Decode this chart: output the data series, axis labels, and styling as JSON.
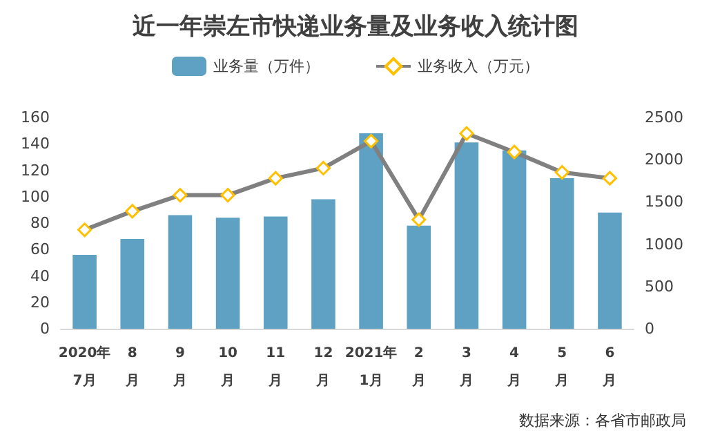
{
  "chart_data": {
    "type": "bar",
    "title": "近一年崇左市快递业务量及业务收入统计图",
    "categories": [
      "2020年\n7月",
      "8\n月",
      "9\n月",
      "10\n月",
      "11\n月",
      "12\n月",
      "2021年\n1月",
      "2\n月",
      "3\n月",
      "4\n月",
      "5\n月",
      "6\n月"
    ],
    "series": [
      {
        "name": "业务量（万件）",
        "color": "#5ea1c2",
        "values": [
          56,
          68,
          86,
          84,
          85,
          98,
          148,
          78,
          141,
          135,
          114,
          88
        ]
      },
      {
        "name": "业务收入（万元）",
        "type": "line",
        "axis": "y2",
        "color": "#808080",
        "marker": "diamond",
        "values": [
          1170,
          1390,
          1580,
          1580,
          1780,
          1900,
          2220,
          1290,
          2310,
          2090,
          1850,
          1780
        ]
      }
    ],
    "ylim": [
      0,
      160
    ],
    "yticks": [
      0,
      20,
      40,
      60,
      80,
      100,
      120,
      140,
      160
    ],
    "y2lim": [
      0,
      2500
    ],
    "y2ticks": [
      0,
      500,
      1000,
      1500,
      2000,
      2500
    ],
    "legend": "top",
    "grid": false,
    "annotations": [
      "数据来源：各省市邮政局"
    ]
  }
}
